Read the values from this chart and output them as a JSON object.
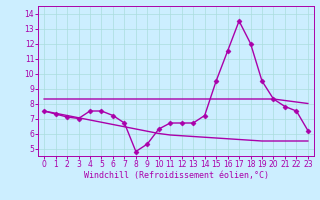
{
  "x": [
    0,
    1,
    2,
    3,
    4,
    5,
    6,
    7,
    8,
    9,
    10,
    11,
    12,
    13,
    14,
    15,
    16,
    17,
    18,
    19,
    20,
    21,
    22,
    23
  ],
  "line1": [
    7.5,
    7.3,
    7.1,
    7.0,
    7.5,
    7.5,
    7.2,
    6.7,
    4.8,
    5.3,
    6.3,
    6.7,
    6.7,
    6.7,
    7.2,
    9.5,
    11.5,
    13.5,
    12.0,
    9.5,
    8.3,
    7.8,
    7.5,
    6.2
  ],
  "line2": [
    8.3,
    8.3,
    8.3,
    8.3,
    8.3,
    8.3,
    8.3,
    8.3,
    8.3,
    8.3,
    8.3,
    8.3,
    8.3,
    8.3,
    8.3,
    8.3,
    8.3,
    8.3,
    8.3,
    8.3,
    8.3,
    8.2,
    8.1,
    8.0
  ],
  "line3": [
    7.5,
    7.35,
    7.2,
    7.05,
    6.9,
    6.75,
    6.6,
    6.45,
    6.3,
    6.15,
    6.0,
    5.9,
    5.85,
    5.8,
    5.75,
    5.7,
    5.65,
    5.6,
    5.55,
    5.5,
    5.5,
    5.5,
    5.5,
    5.5
  ],
  "line_color": "#aa00aa",
  "bg_color": "#cceeff",
  "grid_color": "#aadddd",
  "xlabel": "Windchill (Refroidissement éolien,°C)",
  "ylim": [
    4.5,
    14.5
  ],
  "xlim": [
    -0.5,
    23.5
  ],
  "yticks": [
    5,
    6,
    7,
    8,
    9,
    10,
    11,
    12,
    13,
    14
  ],
  "xticks": [
    0,
    1,
    2,
    3,
    4,
    5,
    6,
    7,
    8,
    9,
    10,
    11,
    12,
    13,
    14,
    15,
    16,
    17,
    18,
    19,
    20,
    21,
    22,
    23
  ],
  "marker": "D",
  "markersize": 2.5,
  "linewidth": 1.0,
  "tick_fontsize": 5.5,
  "xlabel_fontsize": 6.0
}
